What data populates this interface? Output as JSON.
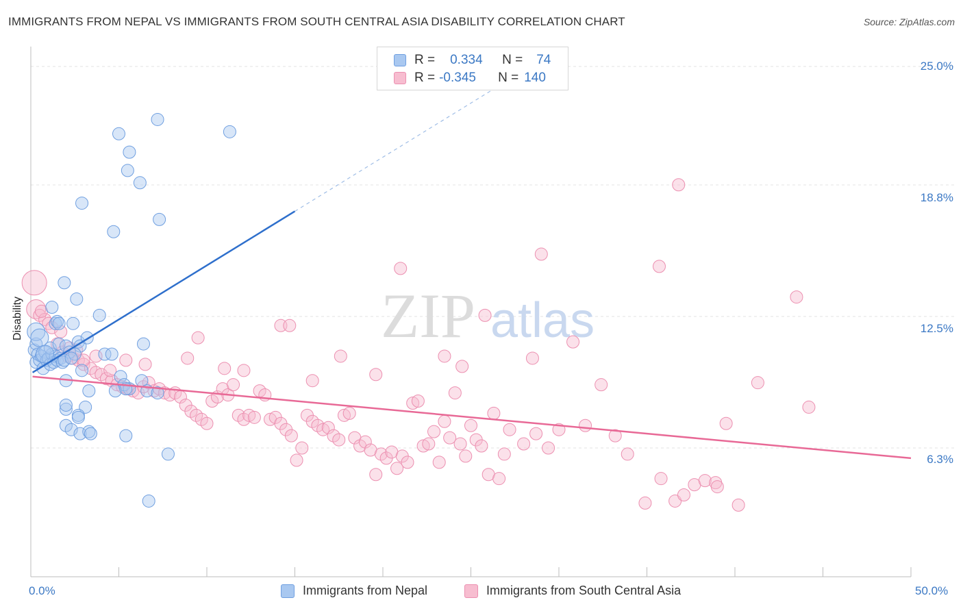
{
  "title": "IMMIGRANTS FROM NEPAL VS IMMIGRANTS FROM SOUTH CENTRAL ASIA DISABILITY CORRELATION CHART",
  "source": "Source: ZipAtlas.com",
  "watermark": {
    "zip": "ZIP",
    "atlas": "atlas"
  },
  "legend": {
    "rows": [
      {
        "r_label": "R =",
        "r_value": "0.334",
        "n_label": "N =",
        "n_value": "74"
      },
      {
        "r_label": "R =",
        "r_value": "-0.345",
        "n_label": "N =",
        "n_value": "140"
      }
    ]
  },
  "chart_data": {
    "type": "scatter",
    "title": "IMMIGRANTS FROM NEPAL VS IMMIGRANTS FROM SOUTH CENTRAL ASIA DISABILITY CORRELATION CHART",
    "xlabel": "",
    "ylabel": "Disability",
    "xlim": [
      0,
      50
    ],
    "ylim": [
      0,
      26
    ],
    "x_tick_labels": [
      "0.0%",
      "50.0%"
    ],
    "y_ticks": [
      6.3,
      12.5,
      18.8,
      25.0
    ],
    "y_tick_labels": [
      "6.3%",
      "12.5%",
      "18.8%",
      "25.0%"
    ],
    "grid": true,
    "legend_position": "top-center",
    "colors": {
      "nepal_fill": "#a9c8f0",
      "nepal_stroke": "#6f9fe0",
      "nepal_line": "#2e6fcc",
      "sca_fill": "#f7bdd0",
      "sca_stroke": "#ec8fb0",
      "sca_line": "#e86996",
      "axis_text": "#3b78c4"
    },
    "series": [
      {
        "name": "Immigrants from Nepal",
        "r": 0.334,
        "n": 74,
        "trend": {
          "x": [
            0.1,
            15.0
          ],
          "y": [
            10.0,
            17.9
          ]
        },
        "trend_extension": {
          "x": [
            15.0,
            26.5
          ],
          "y": [
            17.9,
            24.0
          ]
        },
        "points": [
          [
            0.2,
            11.1
          ],
          [
            0.3,
            11.4
          ],
          [
            0.3,
            10.5
          ],
          [
            0.4,
            10.9
          ],
          [
            0.5,
            10.6
          ],
          [
            0.6,
            10.8
          ],
          [
            0.7,
            10.2
          ],
          [
            0.8,
            11.0
          ],
          [
            0.9,
            10.6
          ],
          [
            1.0,
            10.7
          ],
          [
            1.1,
            10.4
          ],
          [
            1.2,
            10.9
          ],
          [
            1.3,
            10.5
          ],
          [
            1.4,
            10.8
          ],
          [
            1.5,
            10.6
          ],
          [
            1.7,
            10.7
          ],
          [
            1.8,
            10.5
          ],
          [
            1.1,
            11.2
          ],
          [
            1.6,
            11.4
          ],
          [
            2.0,
            11.3
          ],
          [
            2.2,
            11.0
          ],
          [
            1.9,
            10.6
          ],
          [
            1.2,
            13.2
          ],
          [
            1.4,
            12.4
          ],
          [
            1.5,
            12.5
          ],
          [
            1.6,
            12.4
          ],
          [
            2.4,
            12.4
          ],
          [
            1.9,
            14.4
          ],
          [
            2.6,
            13.6
          ],
          [
            2.7,
            11.5
          ],
          [
            2.8,
            11.3
          ],
          [
            2.5,
            10.9
          ],
          [
            2.3,
            10.7
          ],
          [
            3.2,
            11.7
          ],
          [
            2.9,
            10.1
          ],
          [
            2.0,
            9.6
          ],
          [
            3.9,
            12.8
          ],
          [
            4.2,
            10.9
          ],
          [
            4.6,
            10.9
          ],
          [
            5.1,
            9.8
          ],
          [
            5.3,
            9.4
          ],
          [
            4.8,
            9.1
          ],
          [
            5.6,
            9.2
          ],
          [
            3.3,
            9.1
          ],
          [
            2.0,
            7.4
          ],
          [
            2.3,
            7.2
          ],
          [
            2.0,
            8.2
          ],
          [
            2.0,
            8.4
          ],
          [
            3.1,
            8.3
          ],
          [
            2.7,
            7.9
          ],
          [
            2.7,
            7.8
          ],
          [
            2.8,
            7.0
          ],
          [
            6.3,
            9.6
          ],
          [
            6.6,
            9.1
          ],
          [
            7.2,
            9.0
          ],
          [
            5.4,
            9.2
          ],
          [
            3.3,
            7.1
          ],
          [
            3.4,
            7.0
          ],
          [
            5.4,
            6.9
          ],
          [
            7.8,
            6.0
          ],
          [
            6.7,
            3.7
          ],
          [
            4.7,
            16.9
          ],
          [
            5.0,
            21.7
          ],
          [
            5.5,
            19.9
          ],
          [
            5.6,
            20.8
          ],
          [
            6.2,
            19.3
          ],
          [
            7.2,
            22.4
          ],
          [
            7.3,
            17.5
          ],
          [
            11.3,
            21.8
          ],
          [
            2.9,
            18.3
          ],
          [
            6.4,
            11.4
          ],
          [
            0.3,
            12.0
          ],
          [
            0.5,
            11.7
          ],
          [
            0.8,
            10.9
          ]
        ]
      },
      {
        "name": "Immigrants from South Central Asia",
        "r": -0.345,
        "n": 140,
        "trend": {
          "x": [
            0.1,
            50.0
          ],
          "y": [
            9.8,
            5.8
          ]
        },
        "points": [
          [
            0.2,
            14.4
          ],
          [
            0.3,
            13.1
          ],
          [
            0.5,
            12.8
          ],
          [
            0.8,
            12.6
          ],
          [
            1.0,
            12.4
          ],
          [
            1.5,
            11.4
          ],
          [
            1.8,
            11.0
          ],
          [
            2.1,
            10.8
          ],
          [
            2.4,
            10.7
          ],
          [
            2.7,
            10.6
          ],
          [
            3.0,
            10.4
          ],
          [
            3.4,
            10.2
          ],
          [
            3.7,
            10.0
          ],
          [
            4.0,
            9.9
          ],
          [
            4.3,
            9.7
          ],
          [
            4.6,
            9.6
          ],
          [
            4.9,
            9.4
          ],
          [
            5.2,
            9.3
          ],
          [
            5.5,
            9.2
          ],
          [
            5.8,
            9.1
          ],
          [
            6.1,
            9.0
          ],
          [
            6.4,
            9.3
          ],
          [
            6.7,
            9.5
          ],
          [
            7.0,
            9.1
          ],
          [
            7.3,
            9.2
          ],
          [
            7.6,
            9.0
          ],
          [
            7.9,
            8.9
          ],
          [
            8.2,
            9.0
          ],
          [
            8.5,
            8.8
          ],
          [
            8.8,
            8.4
          ],
          [
            9.1,
            8.1
          ],
          [
            9.4,
            7.9
          ],
          [
            9.7,
            7.7
          ],
          [
            10.0,
            7.5
          ],
          [
            10.3,
            8.6
          ],
          [
            10.6,
            8.8
          ],
          [
            10.9,
            9.2
          ],
          [
            11.2,
            8.9
          ],
          [
            11.5,
            9.4
          ],
          [
            11.8,
            7.9
          ],
          [
            12.1,
            7.7
          ],
          [
            12.4,
            7.9
          ],
          [
            12.7,
            7.8
          ],
          [
            13.0,
            9.1
          ],
          [
            13.3,
            8.9
          ],
          [
            13.6,
            7.7
          ],
          [
            13.9,
            7.8
          ],
          [
            14.2,
            7.5
          ],
          [
            14.5,
            7.2
          ],
          [
            14.8,
            6.9
          ],
          [
            15.1,
            5.7
          ],
          [
            15.4,
            6.3
          ],
          [
            15.7,
            7.9
          ],
          [
            16.0,
            7.6
          ],
          [
            16.3,
            7.4
          ],
          [
            16.6,
            7.2
          ],
          [
            16.9,
            7.3
          ],
          [
            17.2,
            6.9
          ],
          [
            17.5,
            6.7
          ],
          [
            17.8,
            7.9
          ],
          [
            18.1,
            8.0
          ],
          [
            18.4,
            6.8
          ],
          [
            18.7,
            6.4
          ],
          [
            19.0,
            6.6
          ],
          [
            19.3,
            6.2
          ],
          [
            19.6,
            5.0
          ],
          [
            19.9,
            6.0
          ],
          [
            20.2,
            5.8
          ],
          [
            20.5,
            6.1
          ],
          [
            20.8,
            5.3
          ],
          [
            21.1,
            5.9
          ],
          [
            21.4,
            5.6
          ],
          [
            21.7,
            8.5
          ],
          [
            22.0,
            8.6
          ],
          [
            22.3,
            6.4
          ],
          [
            22.6,
            6.5
          ],
          [
            22.9,
            7.1
          ],
          [
            23.2,
            5.6
          ],
          [
            23.5,
            7.6
          ],
          [
            23.8,
            6.8
          ],
          [
            24.1,
            9.0
          ],
          [
            24.4,
            6.5
          ],
          [
            24.7,
            5.9
          ],
          [
            25.0,
            7.4
          ],
          [
            25.3,
            6.7
          ],
          [
            25.6,
            6.4
          ],
          [
            26.0,
            5.0
          ],
          [
            26.3,
            8.0
          ],
          [
            26.6,
            4.8
          ],
          [
            26.9,
            6.0
          ],
          [
            27.2,
            7.2
          ],
          [
            28.0,
            6.5
          ],
          [
            28.7,
            7.0
          ],
          [
            29.4,
            6.3
          ],
          [
            30.0,
            7.2
          ],
          [
            30.8,
            11.5
          ],
          [
            31.5,
            7.4
          ],
          [
            32.4,
            9.4
          ],
          [
            33.2,
            6.9
          ],
          [
            33.9,
            6.0
          ],
          [
            34.9,
            3.6
          ],
          [
            35.8,
            4.8
          ],
          [
            36.6,
            3.7
          ],
          [
            37.1,
            4.0
          ],
          [
            37.7,
            4.5
          ],
          [
            38.3,
            4.7
          ],
          [
            38.9,
            4.6
          ],
          [
            39.0,
            4.4
          ],
          [
            39.5,
            7.5
          ],
          [
            40.2,
            3.5
          ],
          [
            41.3,
            9.5
          ],
          [
            44.2,
            8.3
          ],
          [
            23.5,
            10.8
          ],
          [
            24.5,
            10.3
          ],
          [
            25.8,
            12.8
          ],
          [
            28.5,
            10.7
          ],
          [
            29.0,
            15.8
          ],
          [
            35.7,
            15.2
          ],
          [
            36.8,
            19.2
          ],
          [
            43.5,
            13.7
          ],
          [
            14.2,
            12.3
          ],
          [
            14.7,
            12.3
          ],
          [
            17.6,
            10.8
          ],
          [
            19.6,
            9.9
          ],
          [
            21.0,
            15.1
          ],
          [
            9.5,
            11.7
          ],
          [
            8.9,
            10.7
          ],
          [
            11.0,
            10.2
          ],
          [
            12.1,
            10.1
          ],
          [
            16.0,
            9.6
          ],
          [
            5.4,
            10.6
          ],
          [
            6.5,
            10.4
          ],
          [
            3.7,
            10.8
          ],
          [
            3.0,
            10.6
          ],
          [
            4.5,
            10.1
          ],
          [
            2.6,
            11.1
          ],
          [
            1.2,
            12.2
          ],
          [
            1.7,
            12.0
          ],
          [
            2.2,
            11.2
          ],
          [
            0.6,
            13.0
          ]
        ]
      }
    ]
  },
  "axes": {
    "y_axis_title": "Disability",
    "y_ticks": [
      {
        "label": "25.0%"
      },
      {
        "label": "18.8%"
      },
      {
        "label": "12.5%"
      },
      {
        "label": "6.3%"
      }
    ],
    "x_left": "0.0%",
    "x_right": "50.0%"
  },
  "bottom_legend": [
    {
      "label": "Immigrants from Nepal"
    },
    {
      "label": "Immigrants from South Central Asia"
    }
  ]
}
